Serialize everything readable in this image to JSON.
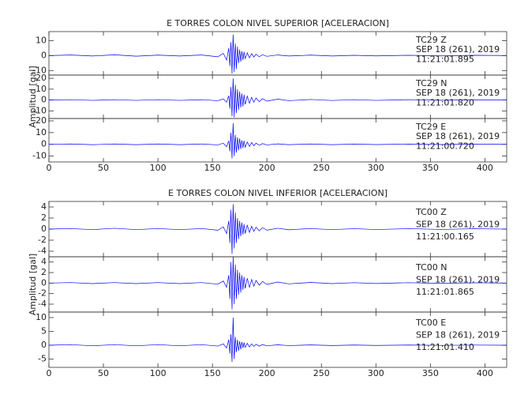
{
  "chart_data": [
    {
      "type": "line",
      "title": "E TORRES COLON NIVEL SUPERIOR [ACELERACION]",
      "ylabel": "Amplitud [gal]",
      "x": [
        0,
        20,
        40,
        60,
        80,
        100,
        120,
        140,
        155,
        160,
        163,
        165,
        166,
        167,
        168,
        169,
        170,
        171,
        172,
        173,
        174,
        175,
        176,
        177,
        178,
        179,
        180,
        182,
        184,
        186,
        188,
        190,
        193,
        196,
        200,
        210,
        220,
        240,
        260,
        280,
        300,
        330,
        360,
        390,
        420
      ],
      "xlim": [
        0,
        420
      ],
      "xticks": [
        0,
        50,
        100,
        150,
        200,
        250,
        300,
        350,
        400
      ],
      "series": [
        {
          "label_lines": [
            "TC29   Z",
            "SEP 18 (261), 2019",
            "11:21:01.895"
          ],
          "color": "#0000ff",
          "ylim": [
            -13,
            16
          ],
          "yticks": [
            10,
            0,
            -10
          ],
          "values": [
            0,
            0.4,
            -0.3,
            0.5,
            -0.4,
            0.3,
            -0.3,
            0.4,
            -0.8,
            1.5,
            -3,
            5,
            -7,
            9,
            -12,
            14,
            -11,
            8,
            -9,
            6,
            -5,
            4,
            -4,
            3,
            -3,
            2.5,
            -2,
            1.8,
            -1.5,
            1.3,
            -1,
            0.9,
            -0.8,
            0.6,
            -0.5,
            0.4,
            -0.3,
            0.3,
            -0.3,
            0.2,
            -0.2,
            0.2,
            -0.2,
            0.2,
            0
          ]
        },
        {
          "label_lines": [
            "TC29   N",
            "SEP 18 (261), 2019",
            "11:21:01.820"
          ],
          "color": "#0000ff",
          "ylim": [
            -17,
            23
          ],
          "yticks": [
            20,
            10,
            0,
            -10
          ],
          "values": [
            0,
            0.3,
            -0.3,
            0.3,
            -0.3,
            0.3,
            -0.3,
            0.3,
            -0.6,
            1,
            -2,
            4,
            -8,
            12,
            -15,
            20,
            -16,
            14,
            -12,
            10,
            -9,
            8,
            -7,
            6,
            -6,
            5,
            -4,
            3.5,
            -3,
            2.5,
            -2,
            1.8,
            -1.5,
            1.2,
            -1,
            0.8,
            -0.6,
            0.5,
            -0.4,
            0.3,
            -0.3,
            0.3,
            -0.2,
            0.2,
            0
          ]
        },
        {
          "label_lines": [
            "TC29   E",
            "SEP 18 (261), 2019",
            "11:21:00.720"
          ],
          "color": "#0000ff",
          "ylim": [
            -15,
            22
          ],
          "yticks": [
            20,
            10,
            0,
            -10
          ],
          "values": [
            0,
            0.3,
            -0.3,
            0.3,
            -0.3,
            0.3,
            -0.3,
            0.3,
            -0.5,
            1,
            -2,
            3,
            -6,
            10,
            -12,
            18,
            -10,
            8,
            -7,
            6,
            -5,
            5,
            -4,
            3.5,
            -3,
            3,
            -2.5,
            2,
            -1.8,
            1.5,
            -1.2,
            1,
            -0.8,
            0.6,
            -0.5,
            0.4,
            -0.3,
            0.3,
            -0.3,
            0.2,
            -0.2,
            0.2,
            -0.2,
            0.2,
            0
          ]
        }
      ]
    },
    {
      "type": "line",
      "title": "E TORRES COLON NIVEL INFERIOR [ACELERACION]",
      "ylabel": "Amplitud [gal]",
      "x": [
        0,
        20,
        40,
        60,
        80,
        100,
        120,
        140,
        155,
        160,
        163,
        165,
        166,
        167,
        168,
        169,
        170,
        171,
        172,
        173,
        174,
        175,
        176,
        177,
        178,
        179,
        180,
        182,
        184,
        186,
        188,
        190,
        193,
        196,
        200,
        210,
        220,
        240,
        260,
        280,
        300,
        330,
        360,
        390,
        420
      ],
      "xlim": [
        0,
        420
      ],
      "xticks": [
        0,
        50,
        100,
        150,
        200,
        250,
        300,
        350,
        400
      ],
      "series": [
        {
          "label_lines": [
            "TC00   Z",
            "SEP 18 (261), 2019",
            "11:21:00.165"
          ],
          "color": "#0000ff",
          "ylim": [
            -5,
            5
          ],
          "yticks": [
            4,
            2,
            0,
            -2,
            -4
          ],
          "values": [
            0,
            0.1,
            -0.1,
            0.15,
            -0.1,
            0.1,
            -0.1,
            0.1,
            -0.2,
            0.4,
            -0.8,
            1.5,
            -2.5,
            3.5,
            -4.5,
            4.5,
            -3.5,
            3,
            -2.5,
            2,
            -1.8,
            1.5,
            -1.3,
            1.2,
            -1,
            0.9,
            -0.8,
            0.7,
            -0.6,
            0.5,
            -0.4,
            0.35,
            -0.3,
            0.25,
            -0.2,
            0.15,
            -0.12,
            0.1,
            -0.1,
            0.08,
            -0.08,
            0.08,
            -0.06,
            0.06,
            0
          ]
        },
        {
          "label_lines": [
            "TC00   N",
            "SEP 18 (261), 2019",
            "11:21:01.865"
          ],
          "color": "#0000ff",
          "ylim": [
            -5.5,
            5
          ],
          "yticks": [
            4,
            2,
            0,
            -2,
            -4
          ],
          "values": [
            0,
            0.1,
            -0.1,
            0.1,
            -0.1,
            0.1,
            -0.1,
            0.1,
            -0.2,
            0.4,
            -0.8,
            1.5,
            -3,
            4,
            -5,
            5,
            -4,
            3.5,
            -3,
            2.5,
            -2.2,
            2,
            -1.8,
            1.5,
            -1.3,
            1.2,
            -1,
            0.9,
            -0.8,
            0.7,
            -0.6,
            0.5,
            -0.4,
            0.3,
            -0.25,
            0.2,
            -0.15,
            0.12,
            -0.1,
            0.08,
            -0.08,
            0.08,
            -0.06,
            0.06,
            0
          ]
        },
        {
          "label_lines": [
            "TC00   E",
            "SEP 18 (261), 2019",
            "11:21:01.410"
          ],
          "color": "#0000ff",
          "ylim": [
            -8,
            12
          ],
          "yticks": [
            10,
            5,
            0,
            -5
          ],
          "values": [
            0,
            0.2,
            -0.2,
            0.2,
            -0.2,
            0.2,
            -0.2,
            0.2,
            -0.3,
            0.5,
            -1,
            2,
            -3,
            4,
            -6,
            10,
            -5,
            3,
            -2.5,
            2,
            -2,
            1.5,
            -1.5,
            1.2,
            -1,
            1,
            -0.8,
            0.7,
            -0.6,
            0.5,
            -0.4,
            0.35,
            -0.3,
            0.25,
            -0.2,
            0.15,
            -0.12,
            0.1,
            -0.1,
            0.08,
            -0.08,
            0.08,
            -0.06,
            0.06,
            0
          ]
        }
      ]
    }
  ]
}
